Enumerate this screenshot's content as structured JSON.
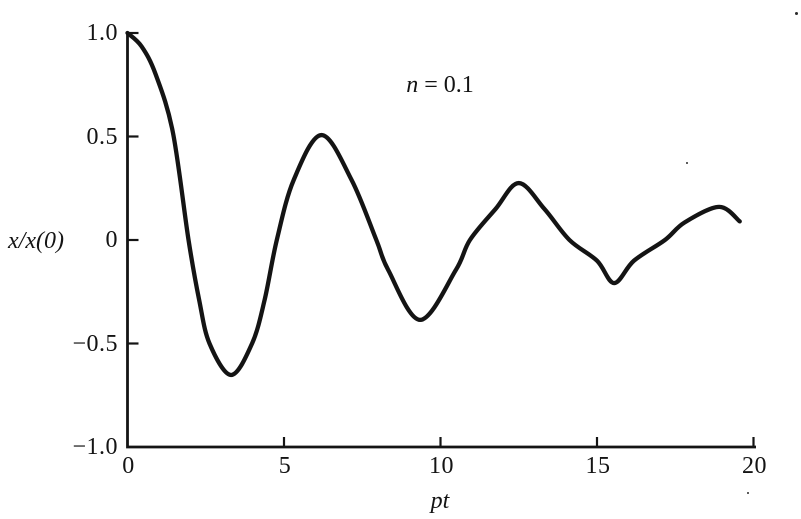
{
  "figure": {
    "kind": "textbook damped-vibration response plot"
  },
  "chart_data": {
    "type": "line",
    "title": "",
    "annotation": {
      "variable": "n",
      "rest": " = 0.1"
    },
    "xlabel": "pt",
    "ylabel": "x/x(0)",
    "xlim": [
      0,
      20
    ],
    "ylim": [
      -1.0,
      1.0
    ],
    "x_ticks": [
      0,
      5,
      10,
      15,
      20
    ],
    "x_tick_labels": [
      "0",
      "5",
      "10",
      "15",
      "20"
    ],
    "y_ticks": [
      1.0,
      0.5,
      0,
      -0.5,
      -1.0
    ],
    "y_tick_labels": [
      "1.0",
      "0.5",
      "0",
      "−0.5",
      "−1.0"
    ],
    "grid": false,
    "legend": null,
    "line_color": "#141414",
    "series": [
      {
        "name": "x/x(0) damped oscillation, n = 0.1",
        "points": [
          [
            0.0,
            1.0
          ],
          [
            0.45,
            0.935
          ],
          [
            0.9,
            0.8
          ],
          [
            1.45,
            0.52
          ],
          [
            1.95,
            0.0
          ],
          [
            2.29,
            -0.29
          ],
          [
            2.62,
            -0.5
          ],
          [
            3.31,
            -0.652
          ],
          [
            3.98,
            -0.5
          ],
          [
            4.38,
            -0.29
          ],
          [
            4.77,
            0.0
          ],
          [
            5.31,
            0.29
          ],
          [
            6.2,
            0.507
          ],
          [
            7.16,
            0.29
          ],
          [
            7.95,
            0.0
          ],
          [
            8.33,
            -0.145
          ],
          [
            9.35,
            -0.386
          ],
          [
            10.49,
            -0.145
          ],
          [
            10.94,
            0.0
          ],
          [
            11.76,
            0.15
          ],
          [
            12.5,
            0.275
          ],
          [
            13.32,
            0.15
          ],
          [
            14.12,
            0.0
          ],
          [
            15.0,
            -0.1
          ],
          [
            15.55,
            -0.208
          ],
          [
            16.18,
            -0.1
          ],
          [
            17.17,
            0.0
          ],
          [
            17.8,
            0.085
          ],
          [
            18.9,
            0.16
          ],
          [
            19.56,
            0.09
          ]
        ]
      }
    ]
  }
}
